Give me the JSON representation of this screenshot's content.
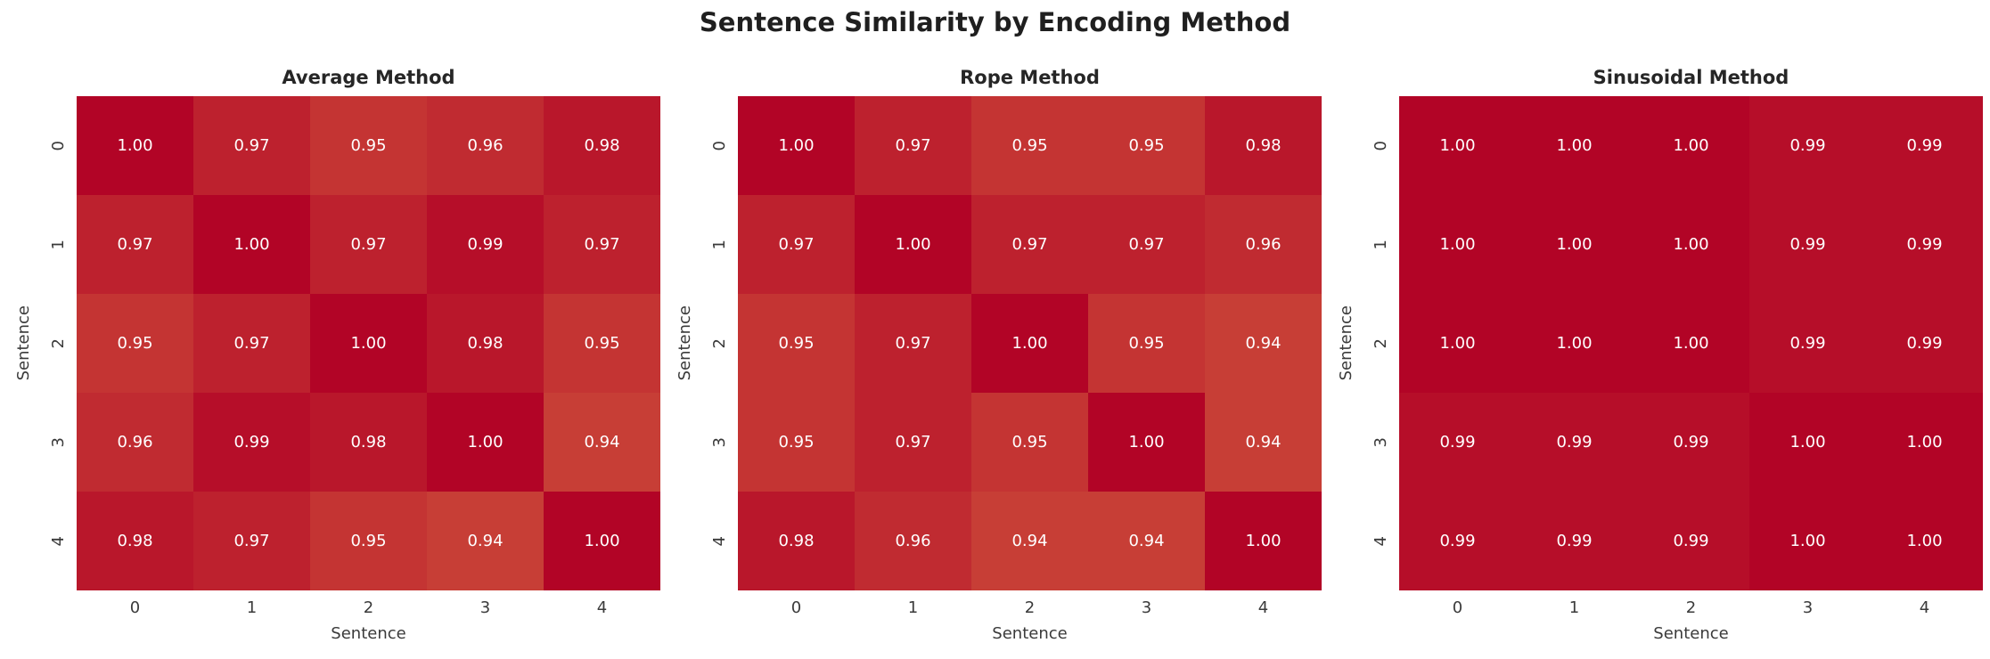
{
  "figure": {
    "title": "Sentence Similarity by Encoding Method"
  },
  "colors": {
    "background": "#ffffff",
    "figure_title_text": "#1f1f1f",
    "panel_title_text": "#262626",
    "axis_text": "#3a3a3a",
    "cell_text": "#ffffff",
    "scale_min_value": 0.94,
    "scale_max_value": 1.0,
    "scale_min_color": "#c73e36",
    "scale_max_color": "#b20426"
  },
  "chart_data": [
    {
      "type": "heatmap",
      "title": "Average Method",
      "xlabel": "Sentence",
      "ylabel": "Sentence",
      "x_ticks": [
        "0",
        "1",
        "2",
        "3",
        "4"
      ],
      "y_ticks": [
        "0",
        "1",
        "2",
        "3",
        "4"
      ],
      "value_decimals": 2,
      "values": [
        [
          1.0,
          0.97,
          0.95,
          0.96,
          0.98
        ],
        [
          0.97,
          1.0,
          0.97,
          0.99,
          0.97
        ],
        [
          0.95,
          0.97,
          1.0,
          0.98,
          0.95
        ],
        [
          0.96,
          0.99,
          0.98,
          1.0,
          0.94
        ],
        [
          0.98,
          0.97,
          0.95,
          0.94,
          1.0
        ]
      ]
    },
    {
      "type": "heatmap",
      "title": "Rope Method",
      "xlabel": "Sentence",
      "ylabel": "Sentence",
      "x_ticks": [
        "0",
        "1",
        "2",
        "3",
        "4"
      ],
      "y_ticks": [
        "0",
        "1",
        "2",
        "3",
        "4"
      ],
      "value_decimals": 2,
      "values": [
        [
          1.0,
          0.97,
          0.95,
          0.95,
          0.98
        ],
        [
          0.97,
          1.0,
          0.97,
          0.97,
          0.96
        ],
        [
          0.95,
          0.97,
          1.0,
          0.95,
          0.94
        ],
        [
          0.95,
          0.97,
          0.95,
          1.0,
          0.94
        ],
        [
          0.98,
          0.96,
          0.94,
          0.94,
          1.0
        ]
      ]
    },
    {
      "type": "heatmap",
      "title": "Sinusoidal Method",
      "xlabel": "Sentence",
      "ylabel": "Sentence",
      "x_ticks": [
        "0",
        "1",
        "2",
        "3",
        "4"
      ],
      "y_ticks": [
        "0",
        "1",
        "2",
        "3",
        "4"
      ],
      "value_decimals": 2,
      "values": [
        [
          1.0,
          1.0,
          1.0,
          0.99,
          0.99
        ],
        [
          1.0,
          1.0,
          1.0,
          0.99,
          0.99
        ],
        [
          1.0,
          1.0,
          1.0,
          0.99,
          0.99
        ],
        [
          0.99,
          0.99,
          0.99,
          1.0,
          1.0
        ],
        [
          0.99,
          0.99,
          0.99,
          1.0,
          1.0
        ]
      ]
    }
  ]
}
